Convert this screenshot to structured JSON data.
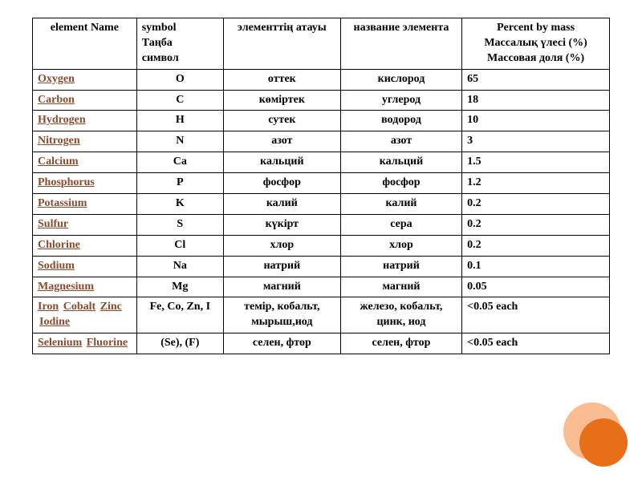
{
  "accent_color": "#e86f1a",
  "accent_light": "#f9bd91",
  "link_color": "#8b4a2b",
  "headers": {
    "name": "element Name",
    "symbol": "symbol\nТаңба\nсимвол",
    "kz": "элементтің атауы",
    "ru": "название элемента",
    "pct": "Percent by mass\nМассалық үлесі (%)\nМассовая доля (%)"
  },
  "rows": [
    {
      "name_links": [
        "Oxygen"
      ],
      "symbol": "O",
      "kz": "оттек",
      "ru": "кислород",
      "pct": "65"
    },
    {
      "name_links": [
        "Carbon"
      ],
      "symbol": "C",
      "kz": "көміртек",
      "ru": "углерод",
      "pct": "18"
    },
    {
      "name_links": [
        "Hydrogen"
      ],
      "symbol": "H",
      "kz": "сутек",
      "ru": "водород",
      "pct": "10"
    },
    {
      "name_links": [
        "Nitrogen"
      ],
      "symbol": "N",
      "kz": "азот",
      "ru": "азот",
      "pct": "3"
    },
    {
      "name_links": [
        "Calcium"
      ],
      "symbol": "Ca",
      "kz": "кальций",
      "ru": "кальций",
      "pct": "1.5"
    },
    {
      "name_links": [
        "Phosphorus"
      ],
      "symbol": "P",
      "kz": "фосфор",
      "ru": "фосфор",
      "pct": "1.2"
    },
    {
      "name_links": [
        "Potassium"
      ],
      "symbol": "K",
      "kz": "калий",
      "ru": "калий",
      "pct": "0.2"
    },
    {
      "name_links": [
        "Sulfur"
      ],
      "symbol": "S",
      "kz": "күкірт",
      "ru": "сера",
      "pct": "0.2"
    },
    {
      "name_links": [
        "Chlorine"
      ],
      "symbol": "Cl",
      "kz": "хлор",
      "ru": "хлор",
      "pct": "0.2"
    },
    {
      "name_links": [
        "Sodium"
      ],
      "symbol": "Na",
      "kz": "натрий",
      "ru": "натрий",
      "pct": "0.1"
    },
    {
      "name_links": [
        "Magnesium"
      ],
      "symbol": "Mg",
      "kz": "магний",
      "ru": "магний",
      "pct": "0.05"
    },
    {
      "name_links": [
        "Iron",
        "Cobalt",
        "Zinc",
        "Iodine"
      ],
      "symbol": "Fe, Co, Zn, I",
      "kz": "темір, кобальт, мырыш,иод",
      "ru": "железо, кобальт, цинк, иод",
      "pct": "<0.05 each"
    },
    {
      "name_links": [
        "Selenium",
        "Fluorine"
      ],
      "symbol": "(Se), (F)",
      "kz": "селен, фтор",
      "ru": "селен, фтор",
      "pct": "<0.05 each"
    }
  ]
}
